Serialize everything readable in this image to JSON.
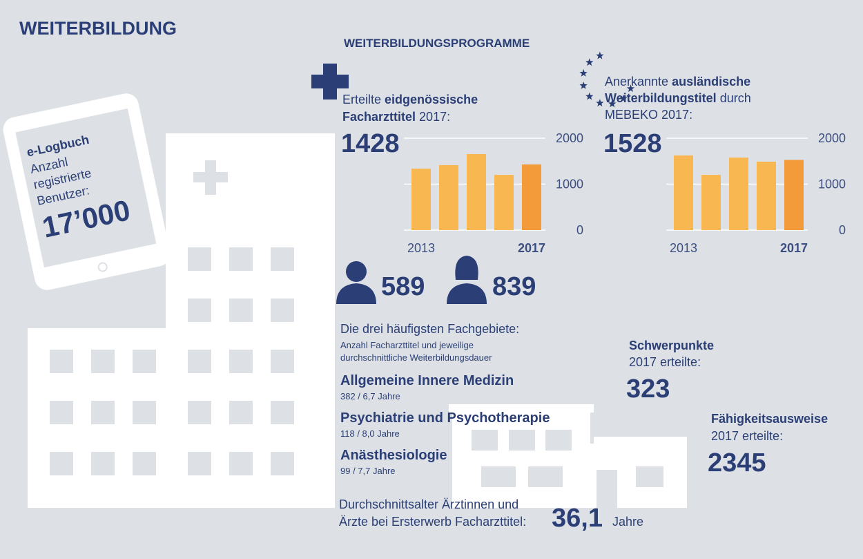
{
  "header": {
    "title": "WEITERBILDUNG"
  },
  "programs": {
    "title": "WEITERBILDUNGSPROGRAMME"
  },
  "elogbook": {
    "title": "e-Logbuch",
    "lines": [
      "Anzahl",
      "registrierte",
      "Benutzer:"
    ],
    "value": "17’000"
  },
  "federal": {
    "pre": "Erteilte",
    "bold1": "eidgenössische",
    "bold2": "Facharzttitel",
    "post": "2017:",
    "value": 1428
  },
  "foreign": {
    "pre": "Anerkannte",
    "bold1": "ausländische",
    "bold2": "Weiterbildungstitel",
    "mid": "durch",
    "post": "MEBEKO 2017:",
    "value": 1528
  },
  "chart_data": [
    {
      "type": "bar",
      "categories": [
        "2013",
        null,
        null,
        null,
        "2017"
      ],
      "values": [
        1338,
        1414,
        1654,
        1203,
        1428
      ],
      "colors": [
        "#f8b750",
        "#f8b750",
        "#f8b750",
        "#f8b750",
        "#f39b3a"
      ],
      "ylim": [
        0,
        2000
      ],
      "yticks": [
        0,
        1000,
        2000
      ],
      "grid": true
    },
    {
      "type": "bar",
      "categories": [
        "2013",
        null,
        null,
        null,
        "2017"
      ],
      "values": [
        1624,
        1203,
        1579,
        1489,
        1528
      ],
      "colors": [
        "#f8b750",
        "#f8b750",
        "#f8b750",
        "#f8b750",
        "#f39b3a"
      ],
      "ylim": [
        0,
        2000
      ],
      "yticks": [
        0,
        1000,
        2000
      ],
      "grid": true
    }
  ],
  "gender": {
    "male": 589,
    "female": 839
  },
  "fields": {
    "heading": "Die drei häufigsten Fachgebiete:",
    "sub": [
      "Anzahl Facharzttitel und jeweilige",
      "durchschnittliche Weiterbildungsdauer"
    ],
    "items": [
      {
        "name": "Allgemeine Innere Medizin",
        "detail": "382 / 6,7 Jahre"
      },
      {
        "name": "Psychiatrie und Psychotherapie",
        "detail": "118 / 8,0 Jahre"
      },
      {
        "name": "Anästhesiologie",
        "detail": "99 / 7,7 Jahre"
      }
    ]
  },
  "focus": {
    "title": "Schwerpunkte",
    "sub": "2017 erteilte:",
    "value": 323
  },
  "certificates": {
    "title": "Fähigkeitsausweise",
    "sub": "2017 erteilte:",
    "value": 2345
  },
  "age": {
    "lines": [
      "Durchschnittsalter Ärztinnen und",
      "Ärzte bei Ersterwerb Facharzttitel:"
    ],
    "value": "36,1",
    "unit": "Jahre"
  }
}
